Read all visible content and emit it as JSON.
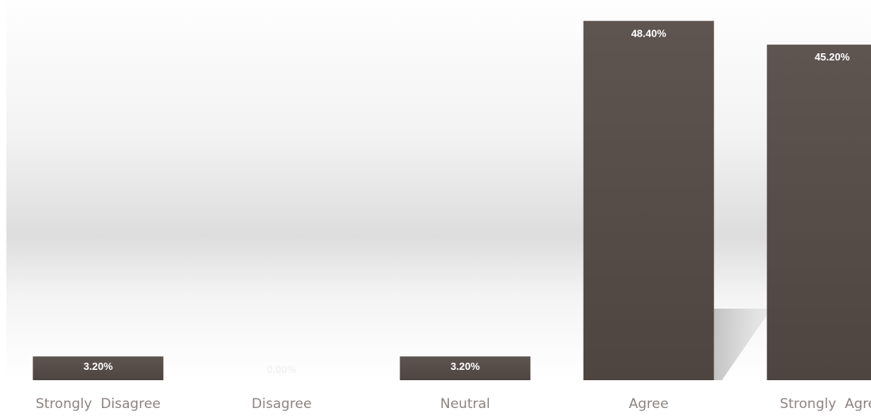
{
  "chart_data": {
    "type": "bar",
    "title": "",
    "xlabel": "",
    "ylabel": "",
    "categories": [
      "Strongly  Disagree",
      "Disagree",
      "Neutral",
      "Agree",
      "Strongly  Agree"
    ],
    "values": [
      3.2,
      0.0,
      3.2,
      48.4,
      45.2
    ],
    "data_labels": [
      "3.20%",
      "0.00%",
      "3.20%",
      "48.40%",
      "45.20%"
    ],
    "ylim": [
      0,
      60
    ],
    "grid": false,
    "legend": "none",
    "colors": {
      "bar": "#5a4f4a",
      "bar_top": "#5e5450",
      "bar_bottom": "#4e4440",
      "label_text": "#ffffff",
      "category_text": "#8c8480",
      "zero_label_text": "#f2f2f2"
    }
  }
}
